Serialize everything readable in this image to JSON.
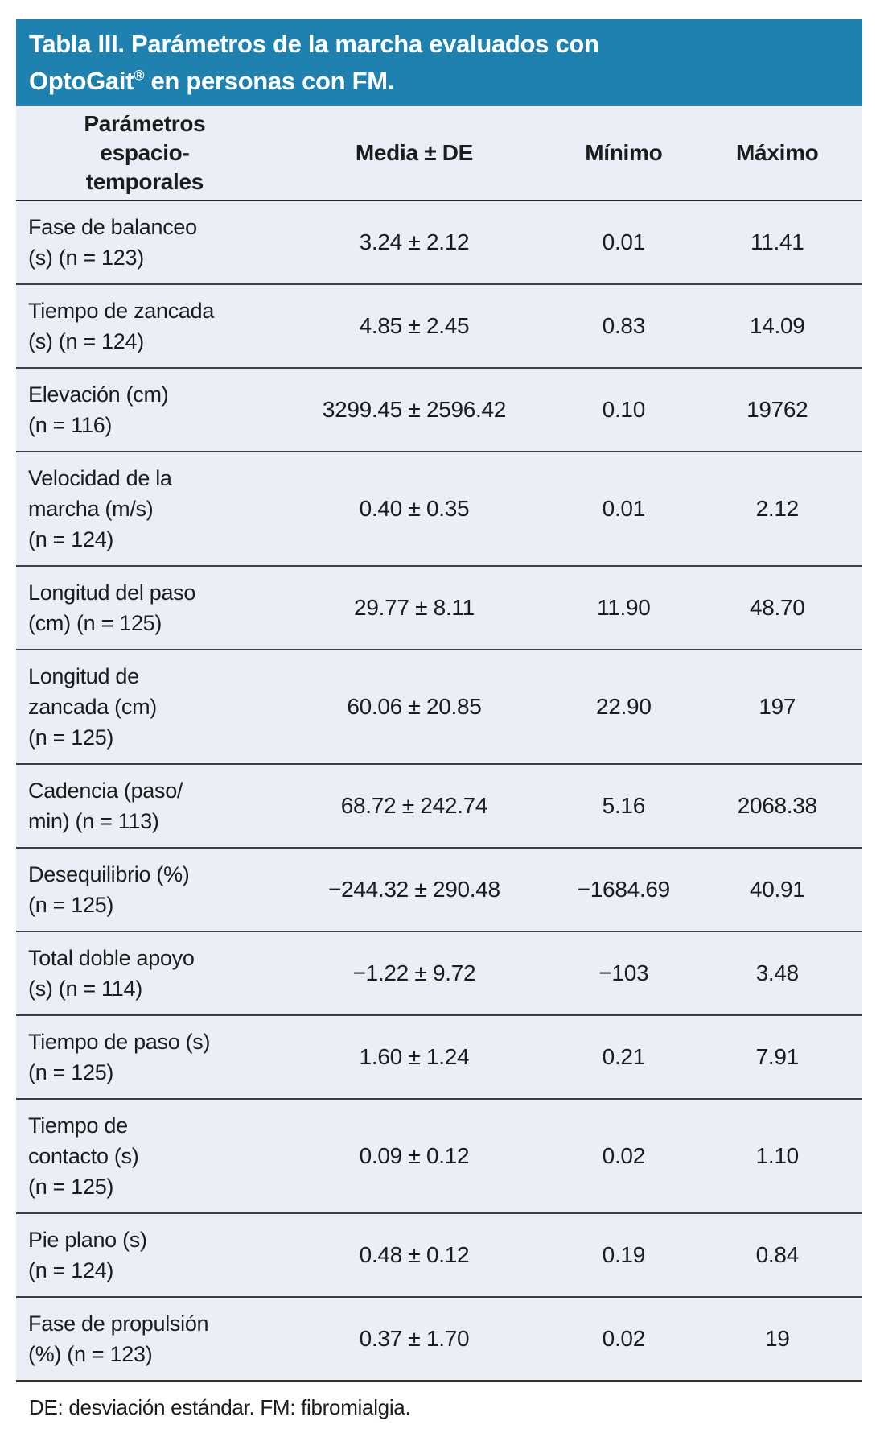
{
  "colors": {
    "banner_bg": "#1f81b0",
    "banner_text": "#ffffff",
    "table_bg": "#eaeef6",
    "divider": "#3f3f3f",
    "text": "#1c1c1c"
  },
  "title": {
    "pre": "Tabla III. Parámetros de la marcha evaluados con\nOptoGait",
    "sup": "®",
    "post": " en personas con FM."
  },
  "table": {
    "header": {
      "param": "Parámetros\nespacio-\ntemporales",
      "media": "Media ± DE",
      "min": "Mínimo",
      "max": "Máximo"
    },
    "rows": [
      {
        "label": "Fase de balanceo\n(s) (n = 123)",
        "media": "3.24 ± 2.12",
        "min": "0.01",
        "max": "11.41"
      },
      {
        "label": "Tiempo de zancada\n(s) (n = 124)",
        "media": "4.85 ± 2.45",
        "min": "0.83",
        "max": "14.09"
      },
      {
        "label": "Elevación (cm)\n(n = 116)",
        "media": "3299.45 ± 2596.42",
        "min": "0.10",
        "max": "19762"
      },
      {
        "label": "Velocidad de la\nmarcha (m/s)\n(n = 124)",
        "media": "0.40 ± 0.35",
        "min": "0.01",
        "max": "2.12"
      },
      {
        "label": "Longitud del paso\n(cm) (n = 125)",
        "media": "29.77 ± 8.11",
        "min": "11.90",
        "max": "48.70"
      },
      {
        "label": "Longitud de\nzancada (cm)\n(n = 125)",
        "media": "60.06 ± 20.85",
        "min": "22.90",
        "max": "197"
      },
      {
        "label": "Cadencia (paso/\nmin) (n = 113)",
        "media": "68.72 ± 242.74",
        "min": "5.16",
        "max": "2068.38"
      },
      {
        "label": "Desequilibrio (%)\n(n = 125)",
        "media": "−244.32 ± 290.48",
        "min": "−1684.69",
        "max": "40.91"
      },
      {
        "label": "Total doble apoyo\n(s) (n = 114)",
        "media": "−1.22 ± 9.72",
        "min": "−103",
        "max": "3.48"
      },
      {
        "label": "Tiempo de paso (s)\n(n = 125)",
        "media": "1.60 ± 1.24",
        "min": "0.21",
        "max": "7.91"
      },
      {
        "label": "Tiempo de\ncontacto (s)\n(n = 125)",
        "media": "0.09 ± 0.12",
        "min": "0.02",
        "max": "1.10"
      },
      {
        "label": "Pie plano (s)\n(n = 124)",
        "media": "0.48 ± 0.12",
        "min": "0.19",
        "max": "0.84"
      },
      {
        "label": "Fase de propulsión\n(%) (n = 123)",
        "media": "0.37 ± 1.70",
        "min": "0.02",
        "max": "19"
      }
    ]
  },
  "footnote": "DE: desviación estándar. FM: fibromialgia.",
  "chart_data": {
    "type": "table",
    "title": "Tabla III. Parámetros de la marcha evaluados con OptoGait® en personas con FM.",
    "columns": [
      "Parámetros espacio-temporales",
      "Media ± DE",
      "Mínimo",
      "Máximo"
    ],
    "rows": [
      [
        "Fase de balanceo (s) (n = 123)",
        "3.24 ± 2.12",
        "0.01",
        "11.41"
      ],
      [
        "Tiempo de zancada (s) (n = 124)",
        "4.85 ± 2.45",
        "0.83",
        "14.09"
      ],
      [
        "Elevación (cm) (n = 116)",
        "3299.45 ± 2596.42",
        "0.10",
        "19762"
      ],
      [
        "Velocidad de la marcha (m/s) (n = 124)",
        "0.40 ± 0.35",
        "0.01",
        "2.12"
      ],
      [
        "Longitud del paso (cm) (n = 125)",
        "29.77 ± 8.11",
        "11.90",
        "48.70"
      ],
      [
        "Longitud de zancada (cm) (n = 125)",
        "60.06 ± 20.85",
        "22.90",
        "197"
      ],
      [
        "Cadencia (paso/min) (n = 113)",
        "68.72 ± 242.74",
        "5.16",
        "2068.38"
      ],
      [
        "Desequilibrio (%) (n = 125)",
        "−244.32 ± 290.48",
        "−1684.69",
        "40.91"
      ],
      [
        "Total doble apoyo (s) (n = 114)",
        "−1.22 ± 9.72",
        "−103",
        "3.48"
      ],
      [
        "Tiempo de paso (s) (n = 125)",
        "1.60 ± 1.24",
        "0.21",
        "7.91"
      ],
      [
        "Tiempo de contacto (s) (n = 125)",
        "0.09 ± 0.12",
        "0.02",
        "1.10"
      ],
      [
        "Pie plano (s) (n = 124)",
        "0.48 ± 0.12",
        "0.19",
        "0.84"
      ],
      [
        "Fase de propulsión (%) (n = 123)",
        "0.37 ± 1.70",
        "0.02",
        "19"
      ]
    ],
    "footnote": "DE: desviación estándar. FM: fibromialgia."
  }
}
